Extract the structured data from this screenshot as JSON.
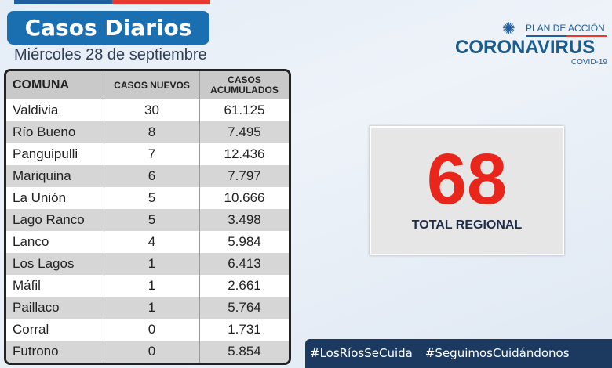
{
  "header": {
    "title": "Casos Diarios",
    "date": "Miércoles 28 de septiembre"
  },
  "logo": {
    "plan": "PLAN DE ACCIÓN",
    "name": "CORONAVIRUS",
    "sub": "COVID-19"
  },
  "table": {
    "headers": [
      "COMUNA",
      "CASOS NUEVOS",
      "CASOS",
      "ACUMULADOS"
    ],
    "rows": [
      [
        "Valdivia",
        "30",
        "61.125"
      ],
      [
        "Río Bueno",
        "8",
        "7.495"
      ],
      [
        "Panguipulli",
        "7",
        "12.436"
      ],
      [
        "Mariquina",
        "6",
        "7.797"
      ],
      [
        "La Unión",
        "5",
        "10.666"
      ],
      [
        "Lago Ranco",
        "5",
        "3.498"
      ],
      [
        "Lanco",
        "4",
        "5.984"
      ],
      [
        "Los Lagos",
        "1",
        "6.413"
      ],
      [
        "Máfil",
        "1",
        "2.661"
      ],
      [
        "Paillaco",
        "1",
        "5.764"
      ],
      [
        "Corral",
        "0",
        "1.731"
      ],
      [
        "Futrono",
        "0",
        "5.854"
      ]
    ]
  },
  "total": {
    "value": "68",
    "label": "TOTAL REGIONAL"
  },
  "hashtags": [
    "#LosRíosSeCuida",
    "#SeguimosCuidándonos"
  ],
  "colors": {
    "brand_blue": "#1a6fb0",
    "accent_red": "#e8261c",
    "footer": "#1c3a60"
  }
}
